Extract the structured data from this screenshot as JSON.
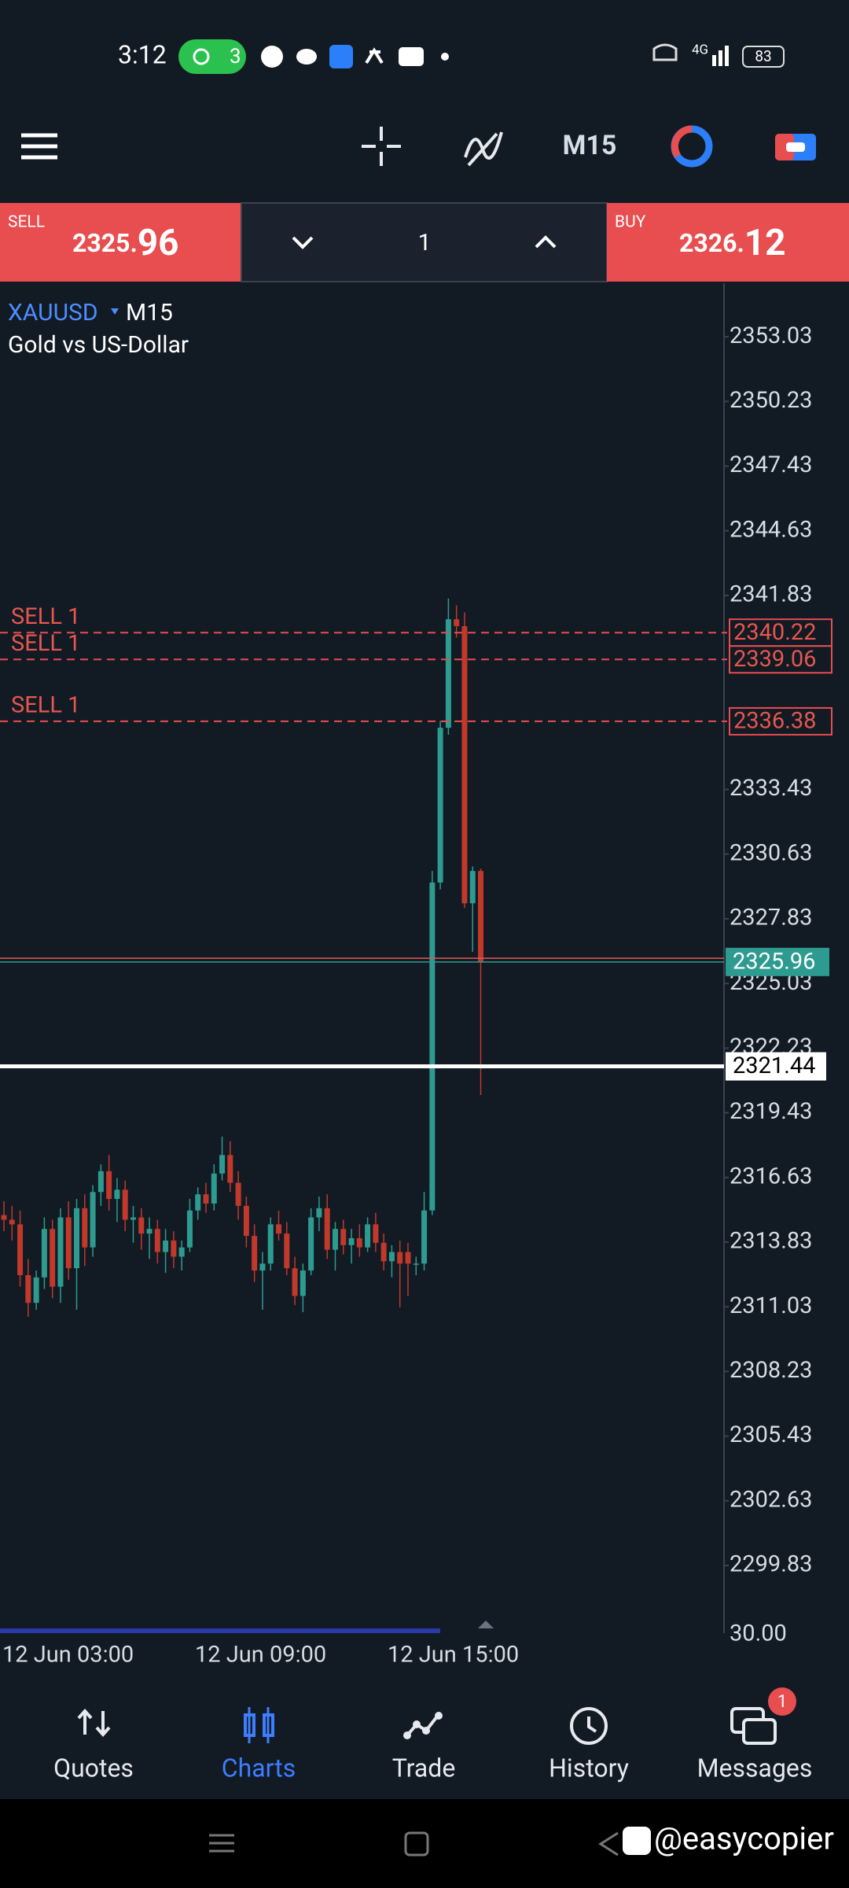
{
  "status_bar": {
    "time": "3:12",
    "hotspot_count": "3",
    "network": "4G",
    "battery": "83"
  },
  "toolbar": {
    "timeframe": "M15"
  },
  "trade_bar": {
    "sell_label": "SELL",
    "sell_price": 2325.96,
    "volume": "1",
    "buy_label": "BUY",
    "buy_price": 2326.12
  },
  "chart": {
    "symbol": "XAUUSD",
    "timeframe": "M15",
    "description": "Gold vs US-Dollar",
    "ylim": [
      2296.9,
      2355.35
    ],
    "yticks": [
      2353.03,
      2350.23,
      2347.43,
      2344.63,
      2341.83,
      2333.43,
      2330.63,
      2327.83,
      2325.03,
      2322.23,
      2319.43,
      2316.63,
      2313.83,
      2311.03,
      2308.23,
      2305.43,
      2302.63,
      2299.83
    ],
    "indicator_label": "30.00",
    "x_labels": [
      "12 Jun 03:00",
      "12 Jun 09:00",
      "12 Jun 15:00"
    ],
    "levels": [
      {
        "label": "SELL 1",
        "value": 2340.22
      },
      {
        "label": "SELL 1",
        "value": 2339.06
      },
      {
        "label": "SELL 1",
        "value": 2336.38
      }
    ],
    "bid": 2325.96,
    "ask": 2326.12,
    "marker": 2321.44,
    "open": [
      2315.0,
      2314.8,
      2314.6,
      2312.4,
      2311.2,
      2312.3,
      2314.4,
      2311.9,
      2314.9,
      2312.7,
      2315.3,
      2313.6,
      2316.0,
      2316.9,
      2315.7,
      2316.1,
      2314.8,
      2314.9,
      2314.2,
      2314.4,
      2313.4,
      2313.9,
      2313.2,
      2313.6,
      2315.2,
      2315.9,
      2315.5,
      2316.8,
      2317.6,
      2316.4,
      2315.4,
      2314.1,
      2312.6,
      2312.9,
      2314.6,
      2314.2,
      2312.7,
      2311.5,
      2312.6,
      2314.9,
      2315.3,
      2313.5,
      2314.4,
      2313.7,
      2314.0,
      2313.6,
      2314.6,
      2313.8,
      2313.0,
      2313.4,
      2313.4,
      2312.9,
      2312.9,
      2315.2,
      2329.4,
      2336.1,
      2340.8,
      2340.5,
      2328.5,
      2329.9
    ],
    "high": [
      2315.6,
      2315.4,
      2315.2,
      2313.1,
      2312.6,
      2314.9,
      2314.8,
      2315.3,
      2315.6,
      2315.7,
      2315.9,
      2316.3,
      2317.2,
      2317.6,
      2316.6,
      2316.5,
      2315.4,
      2315.3,
      2314.9,
      2314.8,
      2314.4,
      2314.3,
      2313.9,
      2315.7,
      2316.2,
      2316.4,
      2317.2,
      2318.4,
      2318.2,
      2316.9,
      2315.8,
      2314.6,
      2313.4,
      2314.9,
      2315.2,
      2314.7,
      2313.2,
      2312.9,
      2315.3,
      2315.8,
      2315.9,
      2314.7,
      2314.8,
      2314.4,
      2314.6,
      2314.9,
      2315.1,
      2314.2,
      2313.7,
      2313.9,
      2313.8,
      2313.2,
      2316.0,
      2329.9,
      2336.4,
      2341.7,
      2341.4,
      2341.1,
      2330.1,
      2330.0
    ],
    "low": [
      2314.3,
      2313.9,
      2311.9,
      2310.6,
      2310.9,
      2311.8,
      2311.4,
      2311.2,
      2312.2,
      2310.9,
      2312.8,
      2313.2,
      2315.4,
      2315.2,
      2314.7,
      2314.3,
      2313.8,
      2313.5,
      2313.1,
      2312.9,
      2312.5,
      2312.7,
      2312.6,
      2313.4,
      2314.8,
      2315.1,
      2315.2,
      2316.5,
      2316.0,
      2314.8,
      2313.6,
      2312.1,
      2310.9,
      2312.6,
      2313.9,
      2312.4,
      2311.1,
      2310.8,
      2312.4,
      2314.3,
      2313.1,
      2312.6,
      2313.3,
      2312.9,
      2313.2,
      2313.4,
      2313.4,
      2312.6,
      2312.3,
      2311.0,
      2311.5,
      2312.4,
      2312.6,
      2315.0,
      2329.1,
      2335.8,
      2340.0,
      2328.3,
      2326.4,
      2320.2
    ],
    "close": [
      2314.8,
      2314.6,
      2312.4,
      2311.2,
      2312.3,
      2314.4,
      2311.9,
      2314.9,
      2312.7,
      2315.3,
      2313.6,
      2316.0,
      2316.9,
      2315.7,
      2316.1,
      2314.8,
      2314.9,
      2314.2,
      2314.4,
      2313.4,
      2313.9,
      2313.2,
      2313.6,
      2315.2,
      2315.9,
      2315.5,
      2316.8,
      2317.6,
      2316.4,
      2315.4,
      2314.1,
      2312.6,
      2312.9,
      2314.6,
      2314.2,
      2312.7,
      2311.5,
      2312.6,
      2314.9,
      2315.3,
      2313.5,
      2314.4,
      2313.7,
      2314.0,
      2313.6,
      2314.6,
      2313.8,
      2313.0,
      2313.4,
      2312.9,
      2312.9,
      2312.9,
      2315.2,
      2329.4,
      2336.1,
      2340.8,
      2340.5,
      2328.5,
      2329.9,
      2325.96
    ]
  },
  "nav": {
    "items": [
      "Quotes",
      "Charts",
      "Trade",
      "History",
      "Messages"
    ],
    "badge": "1"
  },
  "watermark": "@easycopier"
}
